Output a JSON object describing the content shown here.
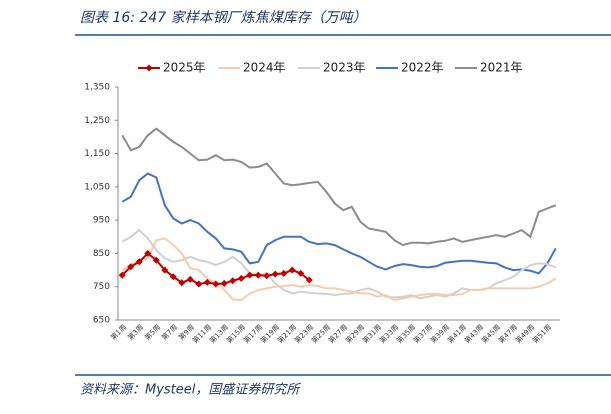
{
  "chart_data": {
    "type": "line",
    "title": "图表 16:  247 家样本钢厂炼焦煤库存（万吨）",
    "source": "资料来源：Mysteel，国盛证券研究所",
    "categories": [
      "第1周",
      null,
      "第3周",
      null,
      "第5周",
      null,
      "第7周",
      null,
      "第9周",
      null,
      "第11周",
      null,
      "第13周",
      null,
      "第15周",
      null,
      "第17周",
      null,
      "第19周",
      null,
      "第21周",
      null,
      "第23周",
      null,
      "第25周",
      null,
      "第27周",
      null,
      "第29周",
      null,
      "第31周",
      null,
      "第33周",
      null,
      "第35周",
      null,
      "第37周",
      null,
      "第39周",
      null,
      "第41周",
      null,
      "第43周",
      null,
      "第45周",
      null,
      "第47周",
      null,
      "第49周",
      null,
      "第51周",
      null
    ],
    "series": [
      {
        "name": "2025年",
        "color": "#c00000",
        "values": [
          785,
          810,
          825,
          850,
          830,
          800,
          780,
          762,
          772,
          758,
          763,
          758,
          760,
          768,
          775,
          785,
          785,
          783,
          788,
          790,
          800,
          790,
          770,
          null,
          null,
          null,
          null,
          null,
          null,
          null,
          null,
          null,
          null,
          null,
          null,
          null,
          null,
          null,
          null,
          null,
          null,
          null,
          null,
          null,
          null,
          null,
          null,
          null,
          null,
          null,
          null,
          null
        ]
      },
      {
        "name": "2024年",
        "color": "#f8cbad",
        "values": [
          800,
          815,
          830,
          835,
          890,
          895,
          875,
          850,
          805,
          800,
          775,
          760,
          740,
          712,
          710,
          730,
          740,
          745,
          750,
          752,
          755,
          750,
          755,
          752,
          745,
          745,
          740,
          735,
          730,
          730,
          720,
          725,
          710,
          715,
          720,
          725,
          728,
          728,
          725,
          725,
          728,
          740,
          740,
          745,
          745,
          745,
          745,
          745,
          745,
          750,
          760,
          775
        ]
      },
      {
        "name": "2023年",
        "color": "#d0d0d0",
        "values": [
          885,
          900,
          920,
          895,
          860,
          835,
          825,
          830,
          840,
          830,
          825,
          815,
          825,
          840,
          820,
          790,
          785,
          790,
          760,
          740,
          730,
          735,
          732,
          730,
          728,
          725,
          728,
          730,
          740,
          745,
          735,
          720,
          718,
          720,
          725,
          715,
          720,
          725,
          720,
          730,
          745,
          740,
          740,
          745,
          760,
          770,
          780,
          800,
          815,
          820,
          818,
          808
        ]
      },
      {
        "name": "2022年",
        "color": "#4472c4",
        "values": [
          1005,
          1020,
          1070,
          1090,
          1078,
          995,
          955,
          940,
          950,
          940,
          915,
          895,
          865,
          862,
          855,
          820,
          825,
          875,
          890,
          900,
          900,
          900,
          885,
          878,
          880,
          875,
          862,
          850,
          840,
          825,
          810,
          802,
          812,
          818,
          815,
          810,
          808,
          812,
          822,
          825,
          828,
          828,
          825,
          822,
          820,
          808,
          800,
          802,
          798,
          790,
          820,
          865
        ]
      },
      {
        "name": "2021年",
        "color": "#8c8c8c",
        "values": [
          1205,
          1160,
          1170,
          1205,
          1225,
          1205,
          1185,
          1170,
          1150,
          1130,
          1132,
          1145,
          1130,
          1132,
          1125,
          1108,
          1110,
          1120,
          1090,
          1060,
          1055,
          1058,
          1062,
          1065,
          1035,
          1000,
          980,
          990,
          945,
          925,
          920,
          915,
          890,
          875,
          882,
          882,
          880,
          885,
          888,
          895,
          885,
          890,
          895,
          900,
          905,
          900,
          910,
          920,
          900,
          975,
          985,
          995
        ]
      }
    ],
    "ylim": [
      650,
      1350
    ],
    "yticks": [
      650,
      750,
      850,
      950,
      {
        "value": 1050,
        "label": "1,050"
      },
      {
        "value": 1150,
        "label": "1,150"
      },
      {
        "value": 1250,
        "label": "1,250"
      },
      {
        "value": 1350,
        "label": "1,350"
      }
    ],
    "grid": false,
    "legend": "top"
  }
}
